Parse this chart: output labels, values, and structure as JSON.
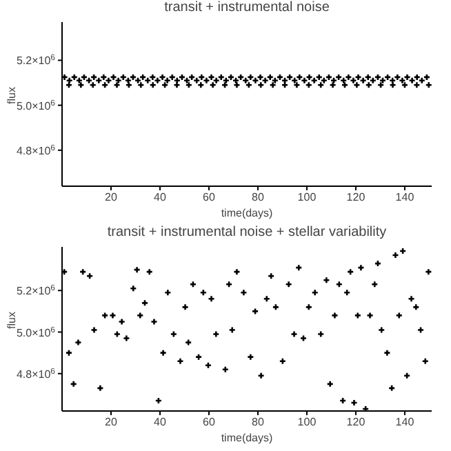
{
  "chart_data": [
    {
      "type": "scatter",
      "title": "transit + instrumental noise",
      "xlabel": "time(days)",
      "ylabel": "flux",
      "marker": "cross",
      "xlim": [
        0,
        151
      ],
      "xticks": [
        20,
        40,
        60,
        80,
        100,
        120,
        140
      ],
      "ylim": [
        4640000,
        5370000
      ],
      "yticks": [
        {
          "value": 4800000,
          "label": "4.8×10$^{6}$"
        },
        {
          "value": 5000000,
          "label": "5.0×10$^{6}$"
        },
        {
          "value": 5200000,
          "label": "5.2×10$^{6}$"
        }
      ],
      "series": [
        {
          "color": "#000000",
          "x": [
            1,
            3,
            5,
            7,
            9,
            11,
            13,
            15,
            17,
            19,
            21,
            23,
            25,
            27,
            29,
            31,
            33,
            35,
            37,
            39,
            41,
            43,
            45,
            47,
            49,
            51,
            53,
            55,
            57,
            59,
            61,
            63,
            65,
            67,
            69,
            71,
            73,
            75,
            77,
            79,
            81,
            83,
            85,
            87,
            89,
            91,
            93,
            95,
            97,
            99,
            101,
            103,
            105,
            107,
            109,
            111,
            113,
            115,
            117,
            119,
            121,
            123,
            125,
            127,
            129,
            131,
            133,
            135,
            137,
            139,
            141,
            143,
            145,
            147,
            149,
            2.8,
            7.7,
            12.6,
            17.5,
            22.4,
            27.3,
            32.2,
            37.1,
            42.0,
            46.9,
            51.8,
            56.7,
            61.6,
            66.5,
            71.4,
            76.3,
            81.2,
            86.1,
            91.0,
            95.9,
            100.8,
            105.7,
            110.6,
            115.5,
            120.4,
            125.3,
            130.2,
            135.1,
            140.0,
            144.9,
            149.8
          ],
          "values": [
            5125000,
            5110000,
            5125000,
            5110000,
            5125000,
            5110000,
            5125000,
            5110000,
            5125000,
            5110000,
            5125000,
            5110000,
            5125000,
            5110000,
            5125000,
            5110000,
            5125000,
            5110000,
            5125000,
            5110000,
            5125000,
            5110000,
            5125000,
            5110000,
            5125000,
            5110000,
            5125000,
            5110000,
            5125000,
            5110000,
            5125000,
            5110000,
            5125000,
            5110000,
            5125000,
            5110000,
            5125000,
            5110000,
            5125000,
            5110000,
            5125000,
            5110000,
            5125000,
            5110000,
            5125000,
            5110000,
            5125000,
            5110000,
            5125000,
            5110000,
            5125000,
            5110000,
            5125000,
            5110000,
            5125000,
            5110000,
            5125000,
            5110000,
            5125000,
            5110000,
            5125000,
            5110000,
            5125000,
            5110000,
            5125000,
            5110000,
            5125000,
            5110000,
            5125000,
            5110000,
            5125000,
            5110000,
            5125000,
            5110000,
            5125000,
            5090000,
            5090000,
            5090000,
            5090000,
            5090000,
            5090000,
            5090000,
            5090000,
            5090000,
            5090000,
            5090000,
            5090000,
            5090000,
            5090000,
            5090000,
            5090000,
            5090000,
            5090000,
            5090000,
            5090000,
            5090000,
            5090000,
            5090000,
            5090000,
            5090000,
            5090000,
            5090000,
            5090000,
            5090000,
            5090000,
            5090000
          ]
        }
      ]
    },
    {
      "type": "scatter",
      "title": "transit + instrumental noise + stellar variability",
      "xlabel": "time(days)",
      "ylabel": "flux",
      "marker": "cross",
      "xlim": [
        0,
        151
      ],
      "xticks": [
        20,
        40,
        60,
        80,
        100,
        120,
        140
      ],
      "ylim": [
        4620000,
        5410000
      ],
      "yticks": [
        {
          "value": 4800000,
          "label": "4.8×10$^{6}$"
        },
        {
          "value": 5000000,
          "label": "5.0×10$^{6}$"
        },
        {
          "value": 5200000,
          "label": "5.2×10$^{6}$"
        }
      ],
      "series": [
        {
          "color": "#000000",
          "x": [
            0.9,
            2.8,
            4.7,
            6.6,
            8.5,
            11.3,
            13.1,
            15.6,
            17.5,
            20.7,
            22.5,
            24.4,
            26.3,
            29.1,
            30.6,
            31.9,
            33.8,
            35.7,
            37.6,
            39.4,
            41.3,
            43.2,
            45.6,
            48.3,
            50.3,
            51.6,
            53.5,
            55.8,
            57.7,
            59.7,
            61.0,
            62.9,
            66.7,
            68.2,
            69.5,
            71.4,
            74.2,
            77.0,
            78.9,
            81.3,
            83.6,
            85.4,
            87.3,
            90.1,
            92.6,
            94.8,
            96.7,
            98.6,
            100.8,
            103.3,
            105.7,
            108.0,
            109.5,
            111.4,
            113.2,
            114.7,
            116.4,
            117.8,
            119.3,
            120.8,
            122.1,
            124.0,
            125.8,
            127.7,
            129.0,
            130.5,
            132.8,
            134.7,
            136.2,
            137.7,
            139.2,
            140.9,
            142.7,
            144.6,
            146.5,
            148.4,
            149.7
          ],
          "values": [
            5290000,
            4900000,
            4750000,
            4950000,
            5290000,
            5270000,
            5010000,
            4730000,
            5080000,
            5080000,
            4990000,
            5050000,
            4970000,
            5210000,
            5300000,
            5080000,
            5140000,
            5290000,
            5050000,
            4670000,
            4900000,
            5190000,
            4990000,
            4860000,
            5120000,
            4950000,
            5230000,
            4880000,
            5190000,
            4840000,
            5160000,
            4990000,
            4820000,
            5230000,
            5010000,
            5290000,
            5190000,
            4880000,
            5100000,
            4790000,
            5160000,
            5270000,
            5120000,
            4860000,
            5230000,
            4990000,
            5310000,
            4970000,
            5120000,
            5190000,
            4990000,
            5250000,
            4750000,
            5080000,
            5230000,
            4670000,
            5190000,
            5290000,
            4660000,
            5080000,
            5310000,
            4630000,
            5080000,
            5230000,
            5330000,
            5010000,
            4900000,
            4730000,
            5370000,
            5080000,
            5390000,
            4790000,
            5160000,
            5120000,
            5010000,
            4860000,
            5290000
          ]
        }
      ]
    }
  ]
}
